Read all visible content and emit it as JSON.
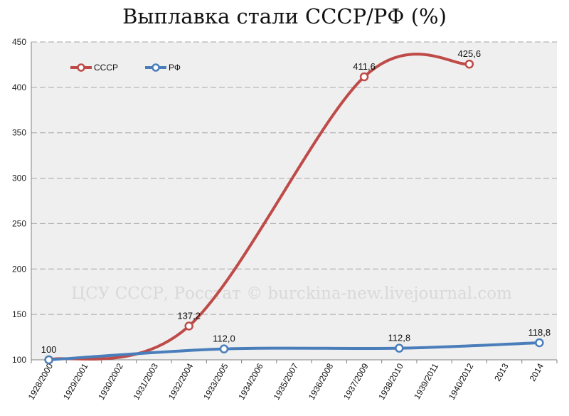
{
  "chart_data": {
    "type": "line",
    "title": "Выплавка стали СССР/РФ (%)",
    "categories": [
      "1928/2000",
      "1929/2001",
      "1930/2002",
      "1931/2003",
      "1932/2004",
      "1933/2005",
      "1934/2006",
      "1935/2007",
      "1936/2008",
      "1937/2009",
      "1938/2010",
      "1939/2011",
      "1940/2012",
      "2013",
      "2014"
    ],
    "ylim": [
      100,
      450
    ],
    "yticks": [
      100,
      150,
      200,
      250,
      300,
      350,
      400,
      450
    ],
    "grid": true,
    "legend_position": "top-left",
    "series": [
      {
        "name": "СССР",
        "color": "#be4b48",
        "points": [
          {
            "i": 0,
            "v": 100,
            "label": "100"
          },
          {
            "i": 4,
            "v": 137.2,
            "label": "137,2"
          },
          {
            "i": 9,
            "v": 411.6,
            "label": "411,6"
          },
          {
            "i": 12,
            "v": 425.6,
            "label": "425,6"
          }
        ]
      },
      {
        "name": "РФ",
        "color": "#4a7ebb",
        "points": [
          {
            "i": 0,
            "v": 100,
            "label": ""
          },
          {
            "i": 5,
            "v": 112.0,
            "label": "112,0"
          },
          {
            "i": 10,
            "v": 112.8,
            "label": "112,8"
          },
          {
            "i": 14,
            "v": 118.8,
            "label": "118,8"
          }
        ]
      }
    ],
    "watermark": "ЦСУ СССР, Росстат © burckina-new.livejournal.com"
  }
}
